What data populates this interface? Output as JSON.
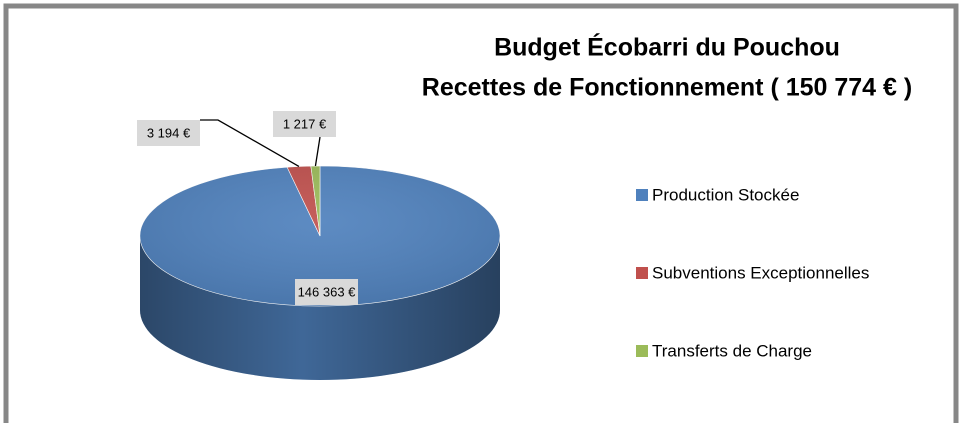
{
  "chart_data": {
    "type": "pie",
    "title": "Budget Écobarri du Pouchou",
    "subtitle": "Recettes de Fonctionnement ( 150 774 € )",
    "categories": [
      "Production Stockée",
      "Subventions Exceptionnelles",
      "Transferts de Charge"
    ],
    "values": [
      146363,
      3194,
      1217
    ],
    "value_labels": [
      "146 363 €",
      "3 194 €",
      "1 217 €"
    ],
    "colors": [
      "#4f81bd",
      "#c0504d",
      "#9bbb59"
    ],
    "legend": "right"
  }
}
